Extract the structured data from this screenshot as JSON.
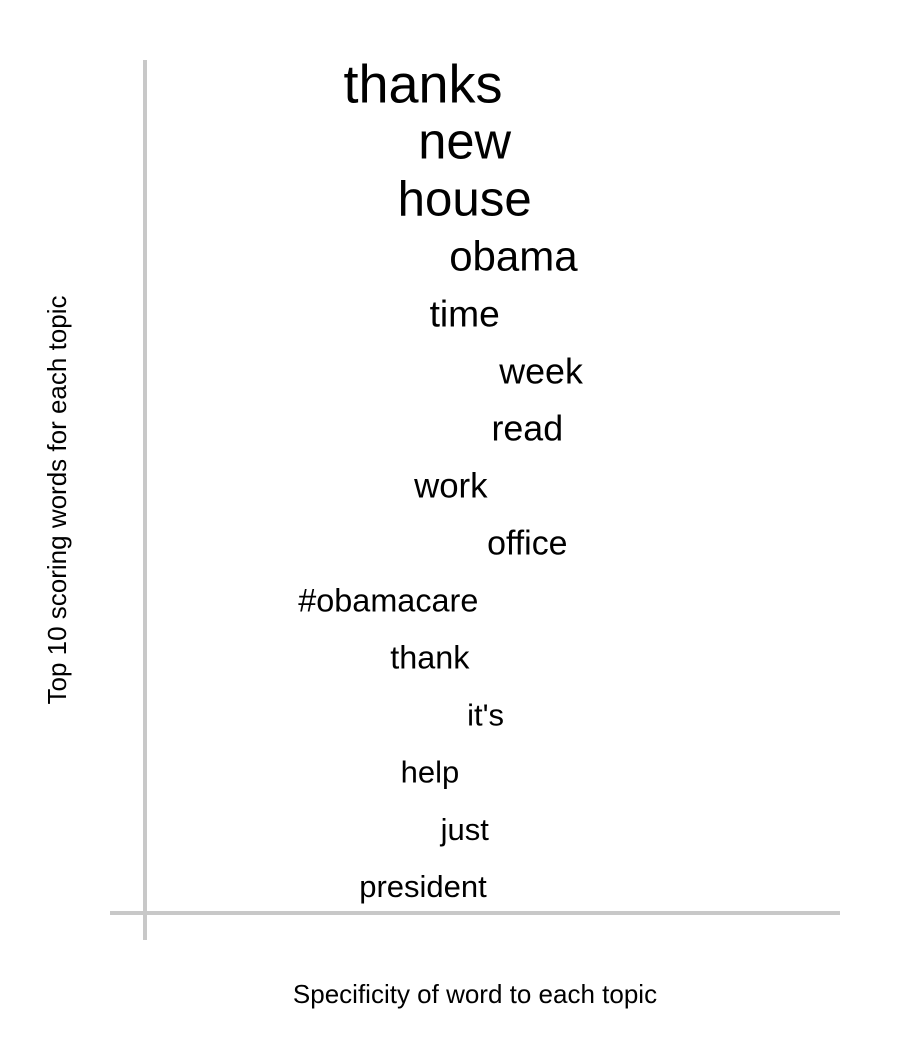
{
  "chart_data": {
    "type": "scatter",
    "title": "",
    "xlabel": "Specificity of word to each topic",
    "ylabel": "Top 10 scoring words for each topic",
    "grid": false,
    "legend": "none",
    "text_color": "#000000",
    "axis_color": "#c8c8c8",
    "words": [
      {
        "label": "thanks",
        "x": 0.4,
        "rank": 1,
        "score": 1.0
      },
      {
        "label": "new",
        "x": 0.46,
        "rank": 2,
        "score": 0.93
      },
      {
        "label": "house",
        "x": 0.46,
        "rank": 3,
        "score": 0.9
      },
      {
        "label": "obama",
        "x": 0.53,
        "rank": 4,
        "score": 0.75
      },
      {
        "label": "time",
        "x": 0.46,
        "rank": 5,
        "score": 0.65
      },
      {
        "label": "week",
        "x": 0.57,
        "rank": 6,
        "score": 0.62
      },
      {
        "label": "read",
        "x": 0.55,
        "rank": 7,
        "score": 0.62
      },
      {
        "label": "work",
        "x": 0.44,
        "rank": 8,
        "score": 0.6
      },
      {
        "label": "office",
        "x": 0.55,
        "rank": 9,
        "score": 0.58
      },
      {
        "label": "#obamacare",
        "x": 0.35,
        "rank": 10,
        "score": 0.55
      },
      {
        "label": "thank",
        "x": 0.41,
        "rank": 11,
        "score": 0.55
      },
      {
        "label": "it's",
        "x": 0.49,
        "rank": 12,
        "score": 0.52
      },
      {
        "label": "help",
        "x": 0.41,
        "rank": 13,
        "score": 0.52
      },
      {
        "label": "just",
        "x": 0.46,
        "rank": 14,
        "score": 0.52
      },
      {
        "label": "president",
        "x": 0.4,
        "rank": 15,
        "score": 0.52
      }
    ]
  }
}
